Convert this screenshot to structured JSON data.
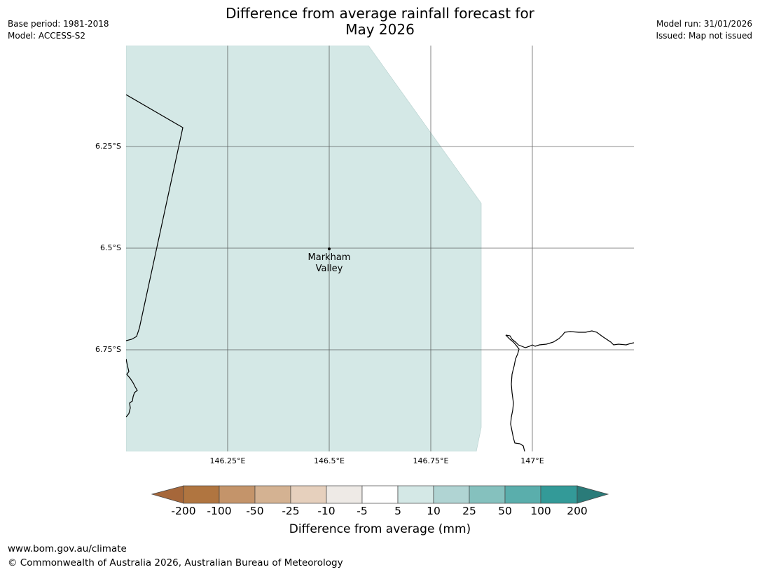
{
  "title": {
    "line1": "Difference from average rainfall forecast for",
    "line2": "May 2026"
  },
  "meta_left": {
    "base_period": "Base period: 1981-2018",
    "model": "Model: ACCESS-S2"
  },
  "meta_right": {
    "model_run": "Model run: 31/01/2026",
    "issued": "Issued: Map not issued"
  },
  "map": {
    "lat_ticks": [
      "6.25°S",
      "6.5°S",
      "6.75°S"
    ],
    "lon_ticks": [
      "146.25°E",
      "146.5°E",
      "146.75°E",
      "147°E"
    ],
    "place": {
      "line1": "Markham",
      "line2": "Valley"
    },
    "fill_color": "#d4e8e6"
  },
  "colorbar": {
    "colors": [
      "#a6673a",
      "#b07540",
      "#c4946a",
      "#d4b292",
      "#e6d0bd",
      "#eeeae6",
      "#ffffff",
      "#d4e8e6",
      "#b0d4d3",
      "#85c1be",
      "#5aaeac",
      "#339a98",
      "#2a7b79"
    ],
    "labels": [
      "-200",
      "-100",
      "-50",
      "-25",
      "-10",
      "-5",
      "5",
      "10",
      "25",
      "50",
      "100",
      "200"
    ],
    "title": "Difference from average (mm)"
  },
  "footer": {
    "url": "www.bom.gov.au/climate",
    "copyright": "© Commonwealth of Australia 2026, Australian Bureau of Meteorology"
  }
}
